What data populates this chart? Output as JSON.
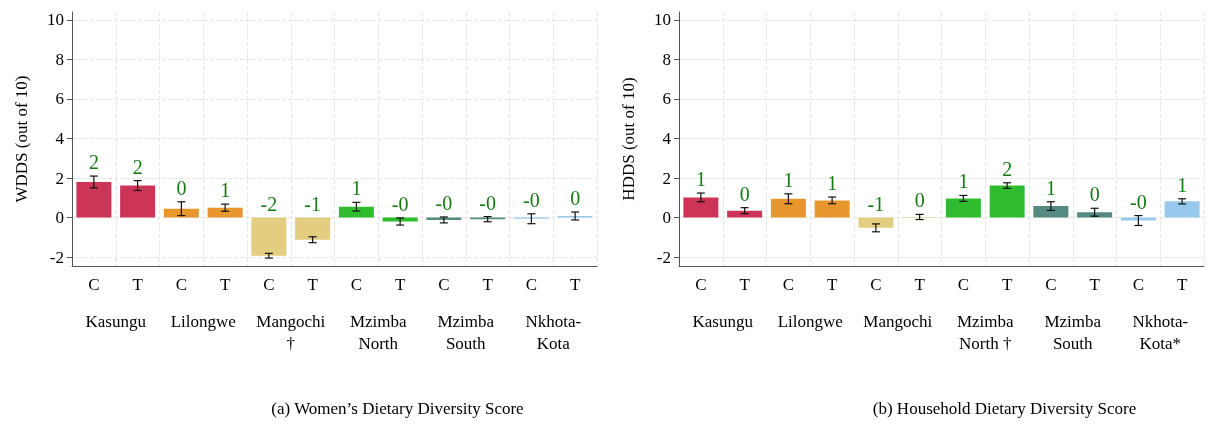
{
  "chart_data": [
    {
      "type": "bar",
      "title": "(a) Women’s Dietary Diversity Score",
      "ylabel": "WDDS (out of 10)",
      "categories": [
        "C",
        "T",
        "C",
        "T",
        "C",
        "T",
        "C",
        "T",
        "C",
        "T",
        "C",
        "T"
      ],
      "annotations": [
        "Kasungu",
        "Lilongwe",
        "Mangochi\n†",
        "Mzimba\nNorth",
        "Mzimba\nSouth",
        "Nkhota-\nKota"
      ],
      "values": [
        1.8,
        1.62,
        0.45,
        0.5,
        -1.93,
        -1.12,
        0.55,
        -0.2,
        -0.12,
        -0.08,
        -0.06,
        0.08
      ],
      "errors": [
        0.3,
        0.25,
        0.35,
        0.18,
        0.12,
        0.15,
        0.22,
        0.18,
        0.15,
        0.13,
        0.25,
        0.2
      ],
      "value_labels": [
        "2",
        "2",
        "0",
        "1",
        "-2",
        "-1",
        "1",
        "-0",
        "-0",
        "-0",
        "-0",
        "0"
      ],
      "colors": [
        "#cc3558",
        "#cc3558",
        "#e8962e",
        "#e8962e",
        "#e3cd80",
        "#e3cd80",
        "#2fbd2f",
        "#2fbd2f",
        "#558a80",
        "#558a80",
        "#98c9ec",
        "#98c9ec"
      ],
      "ylim": [
        -2.45,
        10.4
      ],
      "yticks": [
        -2,
        0,
        2,
        4,
        6,
        8,
        10
      ],
      "grid": true
    },
    {
      "type": "bar",
      "title": "(b) Household Dietary Diversity Score",
      "ylabel": "HDDS (out of 10)",
      "categories": [
        "C",
        "T",
        "C",
        "T",
        "C",
        "T",
        "C",
        "T",
        "C",
        "T",
        "C",
        "T"
      ],
      "annotations": [
        "Kasungu",
        "Lilongwe",
        "Mangochi",
        "Mzimba\nNorth †",
        "Mzimba\nSouth",
        "Nkhota-\nKota*"
      ],
      "values": [
        1.02,
        0.35,
        0.95,
        0.87,
        -0.52,
        0.03,
        0.97,
        1.62,
        0.58,
        0.27,
        -0.15,
        0.82
      ],
      "errors": [
        0.22,
        0.15,
        0.25,
        0.17,
        0.2,
        0.13,
        0.15,
        0.14,
        0.22,
        0.2,
        0.25,
        0.13
      ],
      "value_labels": [
        "1",
        "0",
        "1",
        "1",
        "-1",
        "0",
        "1",
        "2",
        "1",
        "0",
        "-0",
        "1"
      ],
      "colors": [
        "#cc3558",
        "#cc3558",
        "#e8962e",
        "#e8962e",
        "#e3cd80",
        "#e3cd80",
        "#2fbd2f",
        "#2fbd2f",
        "#558a80",
        "#558a80",
        "#98c9ec",
        "#98c9ec"
      ],
      "ylim": [
        -2.45,
        10.4
      ],
      "yticks": [
        -2,
        0,
        2,
        4,
        6,
        8,
        10
      ],
      "grid": true
    }
  ]
}
